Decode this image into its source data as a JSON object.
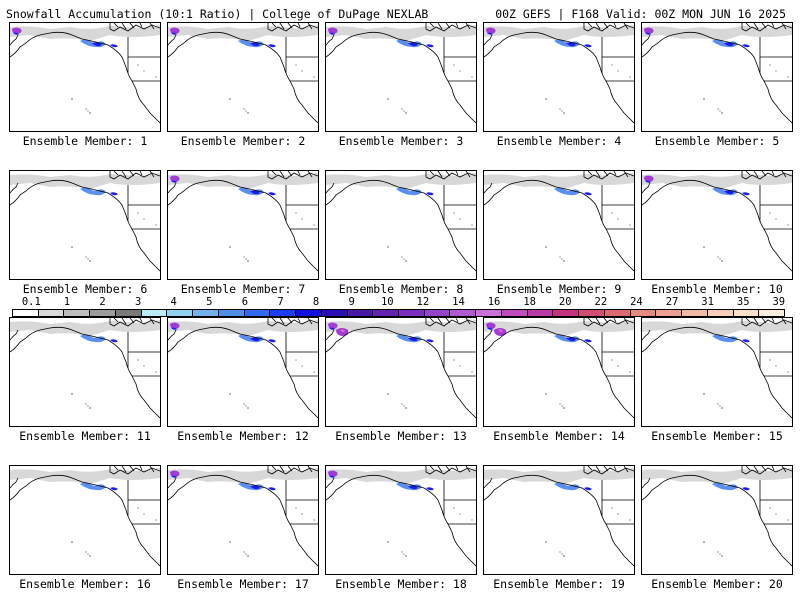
{
  "header": {
    "title": "Snowfall Accumulation (10:1 Ratio) | College of DuPage NEXLAB",
    "run_info": "00Z GEFS | F168 Valid: 00Z MON JUN 16 2025"
  },
  "members": [
    {
      "label": "Ensemble Member: 1",
      "intensity": 2
    },
    {
      "label": "Ensemble Member: 2",
      "intensity": 2
    },
    {
      "label": "Ensemble Member: 3",
      "intensity": 2
    },
    {
      "label": "Ensemble Member: 4",
      "intensity": 2
    },
    {
      "label": "Ensemble Member: 5",
      "intensity": 2
    },
    {
      "label": "Ensemble Member: 6",
      "intensity": 1
    },
    {
      "label": "Ensemble Member: 7",
      "intensity": 2
    },
    {
      "label": "Ensemble Member: 8",
      "intensity": 1
    },
    {
      "label": "Ensemble Member: 9",
      "intensity": 1
    },
    {
      "label": "Ensemble Member: 10",
      "intensity": 2
    },
    {
      "label": "Ensemble Member: 11",
      "intensity": 1
    },
    {
      "label": "Ensemble Member: 12",
      "intensity": 2
    },
    {
      "label": "Ensemble Member: 13",
      "intensity": 3
    },
    {
      "label": "Ensemble Member: 14",
      "intensity": 3
    },
    {
      "label": "Ensemble Member: 15",
      "intensity": 1
    },
    {
      "label": "Ensemble Member: 16",
      "intensity": 1
    },
    {
      "label": "Ensemble Member: 17",
      "intensity": 2
    },
    {
      "label": "Ensemble Member: 18",
      "intensity": 2
    },
    {
      "label": "Ensemble Member: 19",
      "intensity": 1
    },
    {
      "label": "Ensemble Member: 20",
      "intensity": 1
    }
  ],
  "colorbar": {
    "labels": [
      "0.1",
      "1",
      "2",
      "3",
      "4",
      "5",
      "6",
      "7",
      "8",
      "9",
      "10",
      "12",
      "14",
      "16",
      "18",
      "20",
      "22",
      "24",
      "27",
      "31",
      "35",
      "39"
    ],
    "colors": [
      "#ffffff",
      "#d9d9d9",
      "#bdbdbd",
      "#9c9c9c",
      "#7a7a7a",
      "#b9ecf5",
      "#8fd3ef",
      "#6fb3ea",
      "#4f8fe6",
      "#2f6bf0",
      "#1d3df3",
      "#1010e0",
      "#2a10b4",
      "#4818a6",
      "#6422b0",
      "#7a2fbe",
      "#9444c8",
      "#b05ad2",
      "#cc70dc",
      "#c04cc0",
      "#b83aa8",
      "#c2347e",
      "#d04e72",
      "#dc6a70",
      "#e48a7e",
      "#ec9f92",
      "#f2b9a6",
      "#f7ceb8",
      "#fbe0cc",
      "#fdeee0"
    ]
  },
  "map_colors": {
    "coast": "#000000",
    "snow_light": "#c8c8c8",
    "snow_mid": "#5a8ef0",
    "snow_heavy": "#1a1af0",
    "snow_max": "#a23ad8"
  }
}
